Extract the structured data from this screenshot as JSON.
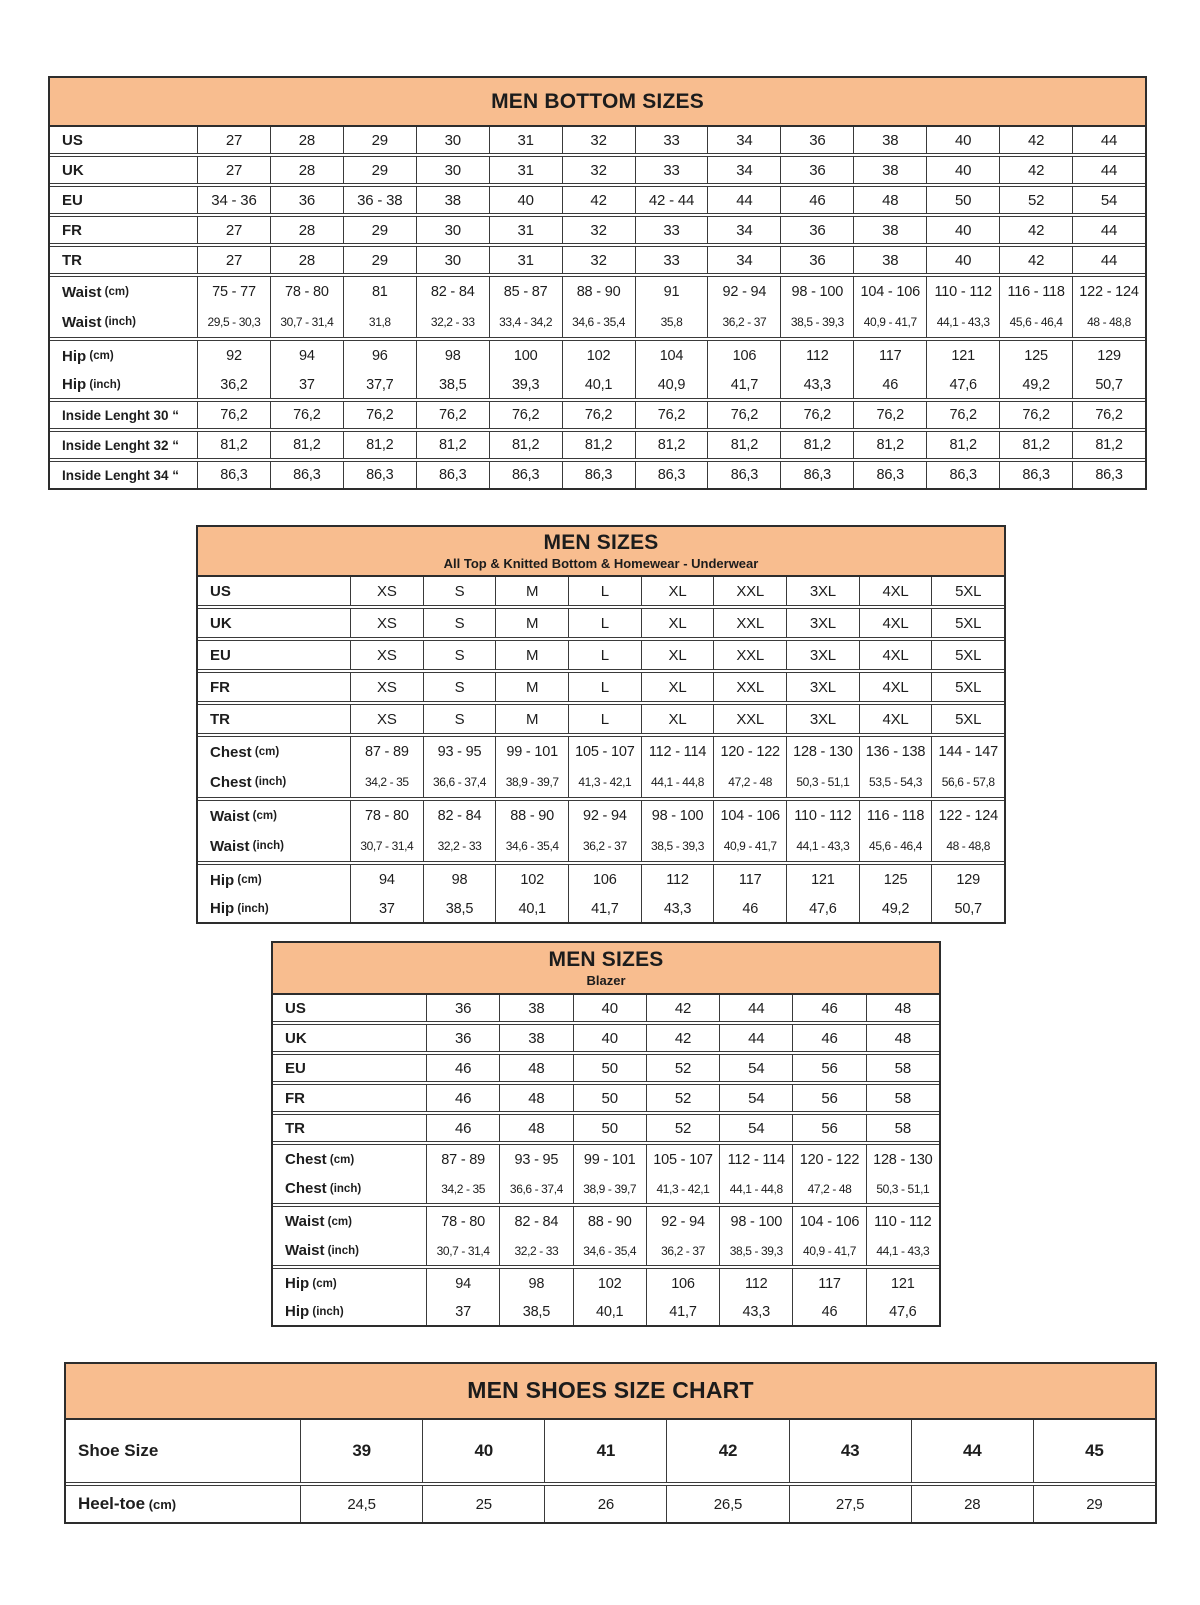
{
  "colors": {
    "header_bg": "#F8BD8F",
    "border": "#2d2d2d",
    "text": "#1d1d1d"
  },
  "tables": [
    {
      "id": "men-bottom-sizes",
      "title": "MEN BOTTOM SIZES",
      "subtitle": "",
      "sections": [
        {
          "rows": [
            {
              "label": "US",
              "unit": "",
              "style": "size",
              "values": [
                "27",
                "28",
                "29",
                "30",
                "31",
                "32",
                "33",
                "34",
                "36",
                "38",
                "40",
                "42",
                "44"
              ]
            }
          ]
        },
        {
          "rows": [
            {
              "label": "UK",
              "unit": "",
              "style": "size",
              "values": [
                "27",
                "28",
                "29",
                "30",
                "31",
                "32",
                "33",
                "34",
                "36",
                "38",
                "40",
                "42",
                "44"
              ]
            }
          ]
        },
        {
          "rows": [
            {
              "label": "EU",
              "unit": "",
              "style": "size",
              "values": [
                "34 - 36",
                "36",
                "36 - 38",
                "38",
                "40",
                "42",
                "42 - 44",
                "44",
                "46",
                "48",
                "50",
                "52",
                "54"
              ]
            }
          ]
        },
        {
          "rows": [
            {
              "label": "FR",
              "unit": "",
              "style": "size",
              "values": [
                "27",
                "28",
                "29",
                "30",
                "31",
                "32",
                "33",
                "34",
                "36",
                "38",
                "40",
                "42",
                "44"
              ]
            }
          ]
        },
        {
          "rows": [
            {
              "label": "TR",
              "unit": "",
              "style": "size",
              "values": [
                "27",
                "28",
                "29",
                "30",
                "31",
                "32",
                "33",
                "34",
                "36",
                "38",
                "40",
                "42",
                "44"
              ]
            }
          ]
        },
        {
          "rows": [
            {
              "label": "Waist",
              "unit": "(cm)",
              "style": "cm",
              "values": [
                "75 - 77",
                "78 - 80",
                "81",
                "82 - 84",
                "85 - 87",
                "88 - 90",
                "91",
                "92 - 94",
                "98 - 100",
                "104 - 106",
                "110 - 112",
                "116 - 118",
                "122 - 124"
              ]
            },
            {
              "label": "Waist",
              "unit": "(inch)",
              "style": "inch",
              "values": [
                "29,5 - 30,3",
                "30,7 - 31,4",
                "31,8",
                "32,2 - 33",
                "33,4 - 34,2",
                "34,6 - 35,4",
                "35,8",
                "36,2 - 37",
                "38,5 - 39,3",
                "40,9 - 41,7",
                "44,1 - 43,3",
                "45,6 - 46,4",
                "48 - 48,8"
              ]
            }
          ]
        },
        {
          "rows": [
            {
              "label": "Hip",
              "unit": "(cm)",
              "style": "cm",
              "values": [
                "92",
                "94",
                "96",
                "98",
                "100",
                "102",
                "104",
                "106",
                "112",
                "117",
                "121",
                "125",
                "129"
              ]
            },
            {
              "label": "Hip",
              "unit": "(inch)",
              "style": "hipin",
              "values": [
                "36,2",
                "37",
                "37,7",
                "38,5",
                "39,3",
                "40,1",
                "40,9",
                "41,7",
                "43,3",
                "46",
                "47,6",
                "49,2",
                "50,7"
              ]
            }
          ]
        },
        {
          "rows": [
            {
              "label": "Inside Lenght 30 “",
              "unit": "",
              "style": "il",
              "values": [
                "76,2",
                "76,2",
                "76,2",
                "76,2",
                "76,2",
                "76,2",
                "76,2",
                "76,2",
                "76,2",
                "76,2",
                "76,2",
                "76,2",
                "76,2"
              ]
            }
          ]
        },
        {
          "rows": [
            {
              "label": "Inside Lenght 32 “",
              "unit": "",
              "style": "il",
              "values": [
                "81,2",
                "81,2",
                "81,2",
                "81,2",
                "81,2",
                "81,2",
                "81,2",
                "81,2",
                "81,2",
                "81,2",
                "81,2",
                "81,2",
                "81,2"
              ]
            }
          ]
        },
        {
          "rows": [
            {
              "label": "Inside Lenght 34 “",
              "unit": "",
              "style": "il",
              "values": [
                "86,3",
                "86,3",
                "86,3",
                "86,3",
                "86,3",
                "86,3",
                "86,3",
                "86,3",
                "86,3",
                "86,3",
                "86,3",
                "86,3",
                "86,3"
              ]
            }
          ]
        }
      ]
    },
    {
      "id": "men-sizes-tops",
      "title": "MEN SIZES",
      "subtitle": "All Top & Knitted Bottom & Homewear - Underwear",
      "sections": [
        {
          "rows": [
            {
              "label": "US",
              "unit": "",
              "style": "size",
              "values": [
                "XS",
                "S",
                "M",
                "L",
                "XL",
                "XXL",
                "3XL",
                "4XL",
                "5XL"
              ]
            }
          ]
        },
        {
          "rows": [
            {
              "label": "UK",
              "unit": "",
              "style": "size",
              "values": [
                "XS",
                "S",
                "M",
                "L",
                "XL",
                "XXL",
                "3XL",
                "4XL",
                "5XL"
              ]
            }
          ]
        },
        {
          "rows": [
            {
              "label": "EU",
              "unit": "",
              "style": "size",
              "values": [
                "XS",
                "S",
                "M",
                "L",
                "XL",
                "XXL",
                "3XL",
                "4XL",
                "5XL"
              ]
            }
          ]
        },
        {
          "rows": [
            {
              "label": "FR",
              "unit": "",
              "style": "size",
              "values": [
                "XS",
                "S",
                "M",
                "L",
                "XL",
                "XXL",
                "3XL",
                "4XL",
                "5XL"
              ]
            }
          ]
        },
        {
          "rows": [
            {
              "label": "TR",
              "unit": "",
              "style": "size",
              "values": [
                "XS",
                "S",
                "M",
                "L",
                "XL",
                "XXL",
                "3XL",
                "4XL",
                "5XL"
              ]
            }
          ]
        },
        {
          "rows": [
            {
              "label": "Chest",
              "unit": "(cm)",
              "style": "cm",
              "values": [
                "87 - 89",
                "93 - 95",
                "99 - 101",
                "105 - 107",
                "112 - 114",
                "120 - 122",
                "128 - 130",
                "136 - 138",
                "144 - 147"
              ]
            },
            {
              "label": "Chest",
              "unit": "(inch)",
              "style": "inch",
              "values": [
                "34,2 - 35",
                "36,6 - 37,4",
                "38,9 - 39,7",
                "41,3 - 42,1",
                "44,1 - 44,8",
                "47,2 - 48",
                "50,3 - 51,1",
                "53,5 - 54,3",
                "56,6 - 57,8"
              ]
            }
          ]
        },
        {
          "rows": [
            {
              "label": "Waist",
              "unit": "(cm)",
              "style": "cm",
              "values": [
                "78 - 80",
                "82 - 84",
                "88 - 90",
                "92 - 94",
                "98 - 100",
                "104 - 106",
                "110 - 112",
                "116 - 118",
                "122 - 124"
              ]
            },
            {
              "label": "Waist",
              "unit": "(inch)",
              "style": "inch",
              "values": [
                "30,7 - 31,4",
                "32,2 - 33",
                "34,6 - 35,4",
                "36,2 - 37",
                "38,5 - 39,3",
                "40,9 - 41,7",
                "44,1 - 43,3",
                "45,6 - 46,4",
                "48 - 48,8"
              ]
            }
          ]
        },
        {
          "rows": [
            {
              "label": "Hip",
              "unit": "(cm)",
              "style": "cm",
              "values": [
                "94",
                "98",
                "102",
                "106",
                "112",
                "117",
                "121",
                "125",
                "129"
              ]
            },
            {
              "label": "Hip",
              "unit": "(inch)",
              "style": "hipin",
              "values": [
                "37",
                "38,5",
                "40,1",
                "41,7",
                "43,3",
                "46",
                "47,6",
                "49,2",
                "50,7"
              ]
            }
          ]
        }
      ]
    },
    {
      "id": "men-sizes-blazer",
      "title": "MEN SIZES",
      "subtitle": "Blazer",
      "sections": [
        {
          "rows": [
            {
              "label": "US",
              "unit": "",
              "style": "size",
              "values": [
                "36",
                "38",
                "40",
                "42",
                "44",
                "46",
                "48"
              ]
            }
          ]
        },
        {
          "rows": [
            {
              "label": "UK",
              "unit": "",
              "style": "size",
              "values": [
                "36",
                "38",
                "40",
                "42",
                "44",
                "46",
                "48"
              ]
            }
          ]
        },
        {
          "rows": [
            {
              "label": "EU",
              "unit": "",
              "style": "size",
              "values": [
                "46",
                "48",
                "50",
                "52",
                "54",
                "56",
                "58"
              ]
            }
          ]
        },
        {
          "rows": [
            {
              "label": "FR",
              "unit": "",
              "style": "size",
              "values": [
                "46",
                "48",
                "50",
                "52",
                "54",
                "56",
                "58"
              ]
            }
          ]
        },
        {
          "rows": [
            {
              "label": "TR",
              "unit": "",
              "style": "size",
              "values": [
                "46",
                "48",
                "50",
                "52",
                "54",
                "56",
                "58"
              ]
            }
          ]
        },
        {
          "rows": [
            {
              "label": "Chest",
              "unit": "(cm)",
              "style": "cm",
              "values": [
                "87 - 89",
                "93 - 95",
                "99 - 101",
                "105 - 107",
                "112 - 114",
                "120 - 122",
                "128 - 130"
              ]
            },
            {
              "label": "Chest",
              "unit": "(inch)",
              "style": "inch",
              "values": [
                "34,2 - 35",
                "36,6 - 37,4",
                "38,9 - 39,7",
                "41,3 - 42,1",
                "44,1 - 44,8",
                "47,2 - 48",
                "50,3 - 51,1"
              ]
            }
          ]
        },
        {
          "rows": [
            {
              "label": "Waist",
              "unit": "(cm)",
              "style": "cm",
              "values": [
                "78 - 80",
                "82 - 84",
                "88 - 90",
                "92 - 94",
                "98 - 100",
                "104 - 106",
                "110 - 112"
              ]
            },
            {
              "label": "Waist",
              "unit": "(inch)",
              "style": "inch",
              "values": [
                "30,7 - 31,4",
                "32,2 - 33",
                "34,6 - 35,4",
                "36,2 - 37",
                "38,5 - 39,3",
                "40,9 - 41,7",
                "44,1 - 43,3"
              ]
            }
          ]
        },
        {
          "rows": [
            {
              "label": "Hip",
              "unit": "(cm)",
              "style": "cm",
              "values": [
                "94",
                "98",
                "102",
                "106",
                "112",
                "117",
                "121"
              ]
            },
            {
              "label": "Hip",
              "unit": "(inch)",
              "style": "hipin",
              "values": [
                "37",
                "38,5",
                "40,1",
                "41,7",
                "43,3",
                "46",
                "47,6"
              ]
            }
          ]
        }
      ]
    },
    {
      "id": "men-shoes-size-chart",
      "title": "MEN SHOES SIZE CHART",
      "subtitle": "",
      "sections": [
        {
          "rows": [
            {
              "label": "Shoe Size",
              "unit": "",
              "style": "shoe",
              "values": [
                "39",
                "40",
                "41",
                "42",
                "43",
                "44",
                "45"
              ]
            }
          ]
        },
        {
          "rows": [
            {
              "label": "Heel-toe",
              "unit": "(cm)",
              "style": "heel",
              "values": [
                "24,5",
                "25",
                "26",
                "26,5",
                "27,5",
                "28",
                "29"
              ]
            }
          ]
        }
      ]
    }
  ]
}
